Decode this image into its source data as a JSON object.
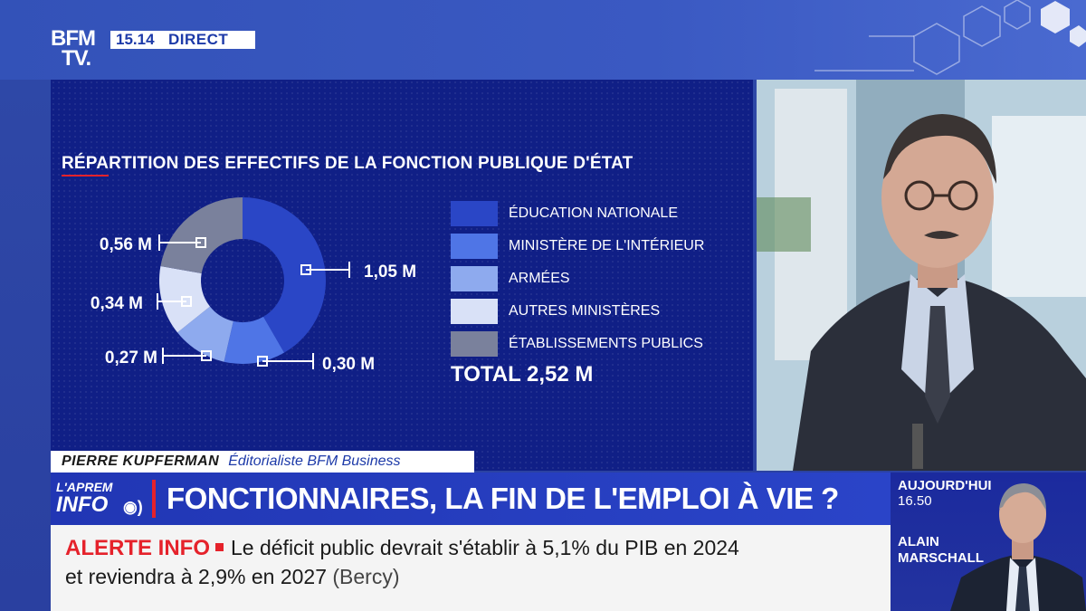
{
  "channel": {
    "logo_line1": "BFM",
    "logo_line2": "TV.",
    "time": "15.14",
    "live_label": "DIRECT"
  },
  "graphic": {
    "title": "RÉPARTITION DES EFFECTIFS DE LA FONCTION PUBLIQUE D'ÉTAT"
  },
  "chart_data": {
    "type": "pie",
    "title": "RÉPARTITION DES EFFECTIFS DE LA FONCTION PUBLIQUE D'ÉTAT",
    "unit": "M",
    "donut": true,
    "categories": [
      "ÉDUCATION NATIONALE",
      "MINISTÈRE DE L'INTÉRIEUR",
      "ARMÉES",
      "AUTRES MINISTÈRES",
      "ÉTABLISSEMENTS PUBLICS"
    ],
    "values": [
      1.05,
      0.3,
      0.27,
      0.34,
      0.56
    ],
    "value_labels": [
      "1,05 M",
      "0,30 M",
      "0,27 M",
      "0,34 M",
      "0,56 M"
    ],
    "colors": [
      "#2a46c6",
      "#4f75e6",
      "#8eaaee",
      "#d9e1f7",
      "#7a819c"
    ],
    "total_label": "TOTAL 2,52 M",
    "legend_position": "right"
  },
  "lower_third": {
    "name": "PIERRE KUPFERMAN",
    "role": "Éditorialiste BFM Business",
    "program_line1": "L'APREM",
    "program_line2": "INFO",
    "headline": "FONCTIONNAIRES, LA FIN DE L'EMPLOI À VIE ?"
  },
  "alert": {
    "tag": "ALERTE INFO",
    "line1": "Le déficit public devrait s'établir à 5,1% du PIB en 2024",
    "line2": "et reviendra à 2,9% en 2027",
    "source": "(Bercy)"
  },
  "next_show": {
    "when": "AUJOURD'HUI",
    "time": "16.50",
    "host_first": "ALAIN",
    "host_last": "MARSCHALL"
  }
}
